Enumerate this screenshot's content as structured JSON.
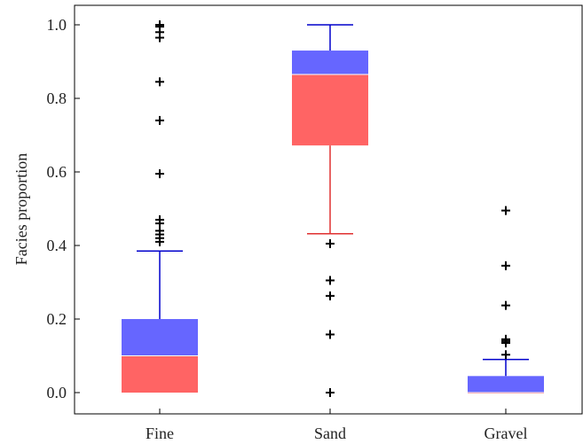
{
  "chart_data": {
    "type": "boxplot",
    "ylabel": "Facies proportion",
    "ylim": [
      -0.06,
      1.05
    ],
    "yticks": [
      0.0,
      0.2,
      0.4,
      0.6,
      0.8,
      1.0
    ],
    "ytick_labels": [
      "0.0",
      "0.2",
      "0.4",
      "0.6",
      "0.8",
      "1.0"
    ],
    "categories": [
      "Fine",
      "Sand",
      "Gravel"
    ],
    "boxes": [
      {
        "category": "Fine",
        "whisker_low": 0.0,
        "q1": 0.0,
        "median": 0.1,
        "q3": 0.2,
        "whisker_high": 0.385,
        "lower_color": "#ff6464",
        "upper_color": "#6666ff",
        "lower_whisker_color": "#e03030",
        "upper_whisker_color": "#0000cc",
        "outliers": [
          0.41,
          0.42,
          0.43,
          0.44,
          0.46,
          0.47,
          0.595,
          0.74,
          0.845,
          0.965,
          0.98,
          0.995,
          1.0
        ]
      },
      {
        "category": "Sand",
        "whisker_low": 0.432,
        "q1": 0.672,
        "median": 0.865,
        "q3": 0.93,
        "whisker_high": 1.0,
        "lower_color": "#ff6464",
        "upper_color": "#6666ff",
        "lower_whisker_color": "#e03030",
        "upper_whisker_color": "#0000cc",
        "outliers": [
          0.0,
          0.158,
          0.263,
          0.305,
          0.405
        ]
      },
      {
        "category": "Gravel",
        "whisker_low": 0.0,
        "q1": 0.0,
        "median": 0.0,
        "q3": 0.045,
        "whisker_high": 0.09,
        "lower_color": "#ff6464",
        "upper_color": "#6666ff",
        "lower_whisker_color": "#e03030",
        "upper_whisker_color": "#0000cc",
        "outliers": [
          0.103,
          0.135,
          0.14,
          0.145,
          0.237,
          0.345,
          0.495
        ]
      }
    ],
    "outlier_marker": "+",
    "outlier_color": "#000000",
    "grid": false
  }
}
